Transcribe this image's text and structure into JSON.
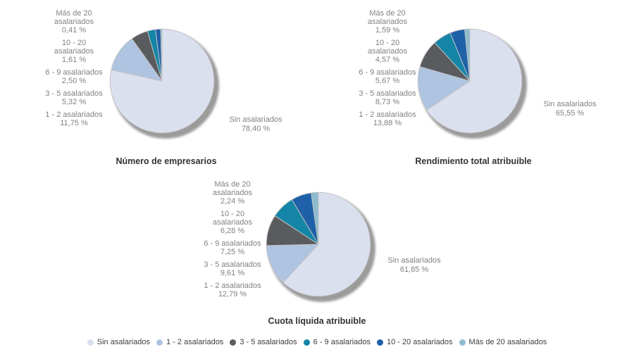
{
  "page": {
    "background": "#ffffff"
  },
  "colors": {
    "label_text": "#818181",
    "title_text": "#333333",
    "legend_text": "#3d3d3d",
    "slice_border": "#c2c2c4",
    "pie_shadow": "#9b9b9b"
  },
  "categories": [
    {
      "name": "Sin asalariados",
      "color": "#dbe0ef"
    },
    {
      "name": "1 - 2 asalariados",
      "color": "#aec4e0"
    },
    {
      "name": "3 - 5 asalariados",
      "color": "#595b5e"
    },
    {
      "name": "6 - 9 asalariados",
      "color": "#1485a6"
    },
    {
      "name": "10 - 20 asalariados",
      "color": "#1e61a8"
    },
    {
      "name": "Más de 20 asalariados",
      "color": "#8dbccd"
    }
  ],
  "chart_data": [
    {
      "type": "pie",
      "title": "Número de empresarios",
      "categories": [
        "Sin asalariados",
        "1 - 2 asalariados",
        "3 - 5 asalariados",
        "6 - 9 asalariados",
        "10 - 20 asalariados",
        "Más de 20 asalariados"
      ],
      "values": [
        78.4,
        11.75,
        5.32,
        2.5,
        1.61,
        0.41
      ],
      "left_labels": [
        "Más de 20\nasalariados\n0,41 %",
        "10 - 20\nasalariados\n1,61 %",
        "6 - 9 asalariados\n2,50 %",
        "3 - 5 asalariados\n5,32 %",
        "1 - 2 asalariados\n11,75 %"
      ],
      "right_label": "Sin asalariados\n78,40 %"
    },
    {
      "type": "pie",
      "title": "Rendimiento total atribuible",
      "categories": [
        "Sin asalariados",
        "1 - 2 asalariados",
        "3 - 5 asalariados",
        "6 - 9 asalariados",
        "10 - 20 asalariados",
        "Más de 20 asalariados"
      ],
      "values": [
        65.55,
        13.88,
        8.73,
        5.67,
        4.57,
        1.59
      ],
      "left_labels": [
        "Más de 20\nasalariados\n1,59 %",
        "10 - 20\nasalariados\n4,57 %",
        "6 - 9 asalariados\n5,67 %",
        "3 - 5 asalariados\n8,73 %",
        "1 - 2 asalariados\n13,88 %"
      ],
      "right_label": "Sin asalariados\n65,55 %"
    },
    {
      "type": "pie",
      "title": "Cuota líquida atribuible",
      "categories": [
        "Sin asalariados",
        "1 - 2 asalariados",
        "3 - 5 asalariados",
        "6 - 9 asalariados",
        "10 - 20 asalariados",
        "Más de 20 asalariados"
      ],
      "values": [
        61.85,
        12.79,
        9.61,
        7.25,
        6.28,
        2.24
      ],
      "left_labels": [
        "Más de 20\nasalariados\n2,24 %",
        "10 - 20\nasalariados\n6,28 %",
        "6 - 9 asalariados\n7,25 %",
        "3 - 5 asalariados\n9,61 %",
        "1 - 2 asalariados\n12,79 %"
      ],
      "right_label": "Sin asalariados\n61,85 %"
    }
  ],
  "legend": {
    "items": [
      "Sin asalariados",
      "1 - 2 asalariados",
      "3 - 5 asalariados",
      "6 - 9 asalariados",
      "10 - 20 asalariados",
      "Más de 20 asalariados"
    ]
  }
}
